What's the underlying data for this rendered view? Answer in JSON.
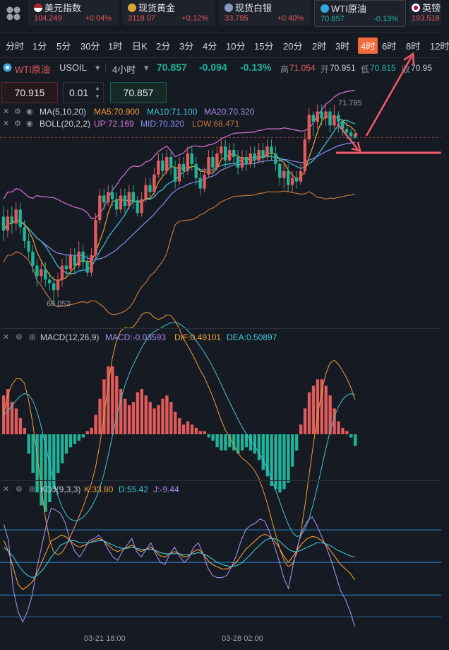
{
  "colors": {
    "up": "#e25b5b",
    "down": "#1fb39a",
    "accent": "#f06a3b",
    "annot": "#f25a6c"
  },
  "tickers": [
    {
      "name": "美元指数",
      "icon": "us-flag-icon",
      "value": "104.249",
      "change": "+0.04%",
      "dir": "up"
    },
    {
      "name": "现货黄金",
      "icon": "gold-icon",
      "value": "3118.07",
      "change": "+0.12%",
      "dir": "up"
    },
    {
      "name": "现货白银",
      "icon": "silver-icon",
      "value": "33.795",
      "change": "+0.40%",
      "dir": "up"
    },
    {
      "name": "WTI原油",
      "icon": "oil-icon",
      "value": "70.857",
      "change": "-0.13%",
      "dir": "down"
    },
    {
      "name": "英镑",
      "icon": "uk-flag-icon",
      "value": "193.518",
      "change": "",
      "dir": "up"
    }
  ],
  "periods": [
    "分时",
    "1分",
    "5分",
    "30分",
    "1时",
    "日K",
    "2分",
    "3分",
    "4分",
    "10分",
    "15分",
    "20分",
    "2时",
    "3时",
    "4时",
    "6时",
    "8时",
    "12时"
  ],
  "selected_period": "4时",
  "symbol": {
    "name": "WTI原油",
    "code": "USOIL",
    "interval": "4小时",
    "price": "70.857",
    "change": "-0.094",
    "change_pct": "-0.13%",
    "high_label": "高",
    "high": "71.054",
    "open_label": "开",
    "open": "70.951",
    "low_label": "低",
    "low": "70.815",
    "close_label": "收",
    "close": "70.95"
  },
  "order": {
    "sell_price": "70.915",
    "qty": "0.01",
    "buy_price": "70.857"
  },
  "ma_legend": {
    "name": "MA(5,10,20)",
    "ma5": "MA5:70.900",
    "ma10": "MA10:71.100",
    "ma20": "MA20:70.320"
  },
  "boll_legend": {
    "name": "BOLL(20,2,2)",
    "up": "UP:72.169",
    "mid": "MID:70.320",
    "low": "LOW:68.471"
  },
  "main_annotations": {
    "max": "71.785",
    "min": "66.052"
  },
  "macd_legend": {
    "name": "MACD(12,26,9)",
    "macd": "MACD:-0.03593",
    "dif": "DIF:0.49101",
    "dea": "DEA:0.50897"
  },
  "kdj_legend": {
    "name": "KDJ(9,3,3)",
    "k": "K:33.80",
    "d": "D:55.42",
    "j": "J:-9.44"
  },
  "time_labels": [
    "03-21 18:00",
    "03-28 02:00"
  ],
  "chart_data": [
    {
      "type": "candlestick",
      "title": "WTI原油 USOIL 4小时",
      "candles": [
        [
          68.6,
          68.2,
          68.9,
          67.9
        ],
        [
          68.2,
          68.6,
          68.8,
          68.0
        ],
        [
          68.6,
          68.4,
          68.9,
          68.1
        ],
        [
          68.4,
          68.8,
          69.0,
          68.2
        ],
        [
          68.8,
          68.3,
          69.0,
          68.1
        ],
        [
          68.3,
          67.9,
          68.5,
          67.7
        ],
        [
          67.9,
          67.6,
          68.1,
          67.4
        ],
        [
          67.6,
          67.2,
          67.8,
          67.0
        ],
        [
          67.2,
          66.9,
          67.4,
          66.6
        ],
        [
          66.9,
          67.1,
          67.3,
          66.7
        ],
        [
          67.1,
          66.8,
          67.3,
          66.6
        ],
        [
          66.8,
          66.7,
          67.0,
          66.5
        ],
        [
          66.7,
          66.5,
          66.9,
          66.1
        ],
        [
          66.5,
          66.8,
          67.0,
          66.3
        ],
        [
          66.8,
          67.2,
          67.4,
          66.6
        ],
        [
          67.2,
          67.1,
          67.5,
          66.9
        ],
        [
          67.1,
          67.5,
          67.7,
          66.9
        ],
        [
          67.5,
          67.2,
          67.7,
          67.0
        ],
        [
          67.2,
          67.6,
          67.9,
          67.1
        ],
        [
          67.6,
          67.3,
          67.8,
          67.1
        ],
        [
          67.3,
          67.0,
          67.5,
          66.9
        ],
        [
          67.0,
          67.5,
          67.7,
          66.9
        ],
        [
          67.5,
          68.5,
          68.7,
          67.4
        ],
        [
          68.5,
          69.2,
          69.4,
          68.4
        ],
        [
          69.2,
          69.0,
          69.4,
          68.8
        ],
        [
          69.0,
          69.3,
          69.5,
          68.9
        ],
        [
          69.3,
          69.1,
          69.5,
          68.9
        ],
        [
          69.1,
          68.8,
          69.3,
          68.6
        ],
        [
          68.8,
          69.2,
          69.4,
          68.7
        ],
        [
          69.2,
          68.9,
          69.4,
          68.7
        ],
        [
          68.9,
          69.3,
          69.5,
          68.8
        ],
        [
          69.3,
          69.0,
          69.5,
          68.8
        ],
        [
          69.0,
          68.7,
          69.2,
          68.6
        ],
        [
          68.7,
          69.1,
          69.3,
          68.6
        ],
        [
          69.1,
          69.5,
          69.7,
          69.0
        ],
        [
          69.5,
          69.3,
          69.7,
          69.1
        ],
        [
          69.3,
          69.8,
          70.0,
          69.2
        ],
        [
          69.8,
          70.2,
          70.4,
          69.7
        ],
        [
          70.2,
          69.9,
          70.4,
          69.7
        ],
        [
          69.9,
          70.3,
          70.5,
          69.8
        ],
        [
          70.3,
          70.0,
          70.5,
          69.8
        ],
        [
          70.0,
          69.6,
          70.2,
          69.4
        ],
        [
          69.6,
          70.1,
          70.3,
          69.5
        ],
        [
          70.1,
          69.9,
          70.3,
          69.7
        ],
        [
          69.9,
          70.4,
          70.6,
          69.8
        ],
        [
          70.4,
          70.1,
          70.6,
          69.9
        ],
        [
          70.1,
          69.7,
          70.3,
          69.5
        ],
        [
          69.7,
          69.4,
          69.9,
          69.2
        ],
        [
          69.4,
          69.8,
          70.0,
          69.3
        ],
        [
          69.8,
          70.3,
          70.5,
          69.7
        ],
        [
          70.3,
          70.0,
          70.5,
          69.8
        ],
        [
          70.0,
          70.4,
          70.6,
          69.9
        ],
        [
          70.4,
          70.6,
          70.8,
          70.2
        ],
        [
          70.6,
          70.2,
          70.8,
          70.0
        ],
        [
          70.2,
          70.5,
          70.7,
          70.1
        ],
        [
          70.5,
          70.3,
          70.7,
          70.1
        ],
        [
          70.3,
          70.0,
          70.5,
          69.8
        ],
        [
          70.0,
          70.3,
          70.5,
          69.9
        ],
        [
          70.3,
          70.1,
          70.5,
          69.9
        ],
        [
          70.1,
          70.4,
          70.6,
          70.0
        ],
        [
          70.4,
          70.2,
          70.6,
          70.0
        ],
        [
          70.2,
          70.5,
          70.7,
          70.1
        ],
        [
          70.5,
          70.3,
          70.7,
          70.1
        ],
        [
          70.3,
          70.6,
          70.8,
          70.2
        ],
        [
          70.6,
          70.4,
          70.8,
          70.2
        ],
        [
          70.4,
          70.1,
          70.6,
          69.9
        ],
        [
          70.1,
          69.7,
          70.3,
          69.5
        ],
        [
          69.7,
          69.9,
          70.1,
          69.4
        ],
        [
          69.9,
          69.5,
          70.1,
          69.3
        ],
        [
          69.5,
          69.7,
          69.9,
          69.3
        ],
        [
          69.7,
          69.6,
          69.9,
          69.4
        ],
        [
          69.6,
          69.9,
          70.1,
          69.5
        ],
        [
          69.9,
          70.8,
          71.0,
          69.8
        ],
        [
          70.8,
          71.5,
          71.7,
          70.7
        ],
        [
          71.5,
          71.3,
          71.6,
          70.9
        ],
        [
          71.3,
          71.6,
          71.8,
          71.1
        ],
        [
          71.6,
          71.4,
          71.8,
          71.2
        ],
        [
          71.4,
          71.6,
          71.8,
          71.2
        ],
        [
          71.6,
          71.2,
          71.7,
          71.0
        ],
        [
          71.2,
          71.5,
          71.785,
          71.1
        ],
        [
          71.5,
          71.3,
          71.6,
          71.0
        ],
        [
          71.3,
          71.1,
          71.4,
          70.9
        ],
        [
          71.1,
          71.0,
          71.3,
          70.8
        ],
        [
          71.0,
          70.9,
          71.1,
          70.8
        ],
        [
          70.95,
          70.857,
          71.054,
          70.815
        ]
      ],
      "ylim": [
        65.9,
        72.6
      ]
    },
    {
      "type": "bar",
      "title": "MACD(12,26,9)",
      "values": [
        0.12,
        0.14,
        0.1,
        0.08,
        0.05,
        0.02,
        -0.06,
        -0.12,
        -0.18,
        -0.22,
        -0.24,
        -0.21,
        -0.17,
        -0.12,
        -0.09,
        -0.06,
        -0.04,
        -0.03,
        -0.02,
        -0.01,
        0.01,
        0.02,
        0.06,
        0.11,
        0.17,
        0.21,
        0.21,
        0.18,
        0.14,
        0.11,
        0.09,
        0.1,
        0.13,
        0.14,
        0.12,
        0.1,
        0.08,
        0.09,
        0.11,
        0.12,
        0.1,
        0.07,
        0.05,
        0.03,
        0.04,
        0.03,
        0.02,
        0.01,
        0.01,
        -0.01,
        -0.02,
        -0.04,
        -0.05,
        -0.05,
        -0.04,
        -0.05,
        -0.06,
        -0.05,
        -0.04,
        -0.05,
        -0.06,
        -0.08,
        -0.11,
        -0.13,
        -0.16,
        -0.17,
        -0.18,
        -0.17,
        -0.15,
        -0.1,
        -0.05,
        0.03,
        0.08,
        0.13,
        0.15,
        0.17,
        0.17,
        0.15,
        0.12,
        0.08,
        0.04,
        0.02,
        0.01,
        -0.01,
        -0.036
      ],
      "ylim": [
        -0.28,
        0.28
      ]
    },
    {
      "type": "line",
      "title": "KDJ(9,3,3)",
      "series": [
        {
          "name": "K",
          "values": [
            70,
            60,
            45,
            30,
            25,
            28,
            32,
            40,
            50,
            60,
            70,
            72,
            75,
            74,
            70,
            66,
            64,
            66,
            68,
            70,
            72,
            70,
            66,
            62,
            60,
            62,
            64,
            66,
            62,
            60,
            62,
            64,
            60,
            56,
            55,
            58,
            60,
            58,
            55,
            56,
            60,
            62,
            58,
            52,
            48,
            46,
            44,
            44,
            46,
            50,
            56,
            62,
            66,
            70,
            74,
            76,
            74,
            70,
            64,
            56,
            50,
            56,
            62,
            68,
            72,
            74,
            73,
            70,
            66,
            60,
            54,
            48,
            44,
            40,
            34
          ]
        },
        {
          "name": "D",
          "values": [
            64,
            60,
            55,
            48,
            42,
            38,
            36,
            38,
            42,
            48,
            55,
            60,
            66,
            68,
            70,
            70,
            68,
            68,
            68,
            69,
            70,
            70,
            68,
            66,
            64,
            63,
            63,
            64,
            63,
            62,
            62,
            62,
            61,
            59,
            58,
            58,
            58,
            58,
            57,
            57,
            58,
            59,
            58,
            56,
            53,
            50,
            48,
            47,
            46,
            47,
            49,
            53,
            57,
            62,
            66,
            70,
            72,
            72,
            70,
            66,
            62,
            60,
            60,
            62,
            64,
            66,
            68,
            68,
            67,
            65,
            62,
            60,
            58,
            56,
            55
          ]
        },
        {
          "name": "J",
          "values": [
            85,
            70,
            25,
            5,
            -5,
            5,
            20,
            45,
            65,
            85,
            100,
            98,
            95,
            86,
            70,
            60,
            55,
            62,
            70,
            72,
            75,
            70,
            62,
            55,
            52,
            60,
            66,
            72,
            60,
            55,
            62,
            68,
            58,
            50,
            48,
            58,
            64,
            56,
            50,
            54,
            64,
            68,
            58,
            45,
            38,
            36,
            36,
            38,
            46,
            56,
            70,
            80,
            84,
            86,
            90,
            88,
            78,
            66,
            52,
            36,
            26,
            48,
            66,
            80,
            88,
            92,
            84,
            74,
            64,
            52,
            38,
            24,
            16,
            5,
            -9
          ]
        }
      ],
      "ylim": [
        -15,
        110
      ]
    }
  ]
}
